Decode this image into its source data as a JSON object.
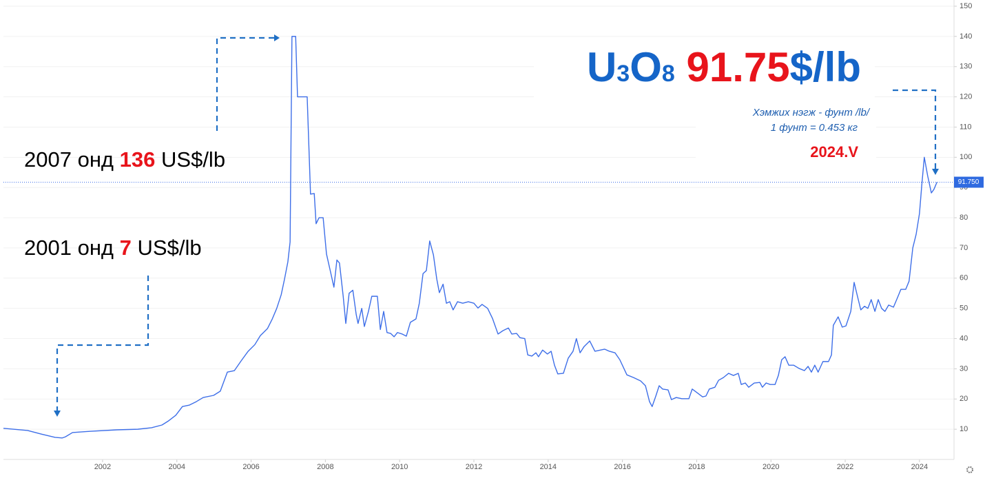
{
  "chart_data": {
    "type": "line",
    "color": "#3d6ee8",
    "xlim": [
      1999.33,
      2024.93
    ],
    "xticks": [
      2002,
      2004,
      2006,
      2008,
      2010,
      2012,
      2014,
      2016,
      2018,
      2020,
      2022,
      2024
    ],
    "ylim": [
      0,
      150
    ],
    "yticks": [
      10,
      20,
      30,
      40,
      50,
      60,
      70,
      80,
      90,
      100,
      110,
      120,
      130,
      140,
      150
    ],
    "grid": true,
    "price_line": {
      "value": 91.75,
      "label": "91.750"
    },
    "x": [
      1999.33,
      1999.98,
      2000.35,
      2000.72,
      2000.91,
      2001.0,
      2001.19,
      2001.65,
      2002.39,
      2002.95,
      2003.32,
      2003.6,
      2003.78,
      2003.97,
      2004.15,
      2004.34,
      2004.52,
      2004.71,
      2004.99,
      2005.17,
      2005.36,
      2005.55,
      2005.73,
      2005.92,
      2006.1,
      2006.25,
      2006.44,
      2006.57,
      2006.69,
      2006.81,
      2006.9,
      2006.99,
      2007.05,
      2007.1,
      2007.2,
      2007.25,
      2007.51,
      2007.6,
      2007.7,
      2007.75,
      2007.83,
      2007.94,
      2008.03,
      2008.14,
      2008.23,
      2008.31,
      2008.38,
      2008.48,
      2008.55,
      2008.64,
      2008.74,
      2008.83,
      2008.88,
      2008.98,
      2009.05,
      2009.16,
      2009.25,
      2009.4,
      2009.48,
      2009.57,
      2009.66,
      2009.76,
      2009.85,
      2009.94,
      2010.07,
      2010.18,
      2010.29,
      2010.44,
      2010.53,
      2010.63,
      2010.72,
      2010.81,
      2010.91,
      2011.0,
      2011.07,
      2011.17,
      2011.26,
      2011.35,
      2011.44,
      2011.56,
      2011.7,
      2011.85,
      2012.0,
      2012.11,
      2012.22,
      2012.37,
      2012.5,
      2012.65,
      2012.78,
      2012.93,
      2013.02,
      2013.15,
      2013.24,
      2013.37,
      2013.45,
      2013.56,
      2013.67,
      2013.74,
      2013.85,
      2013.98,
      2014.08,
      2014.17,
      2014.26,
      2014.41,
      2014.54,
      2014.67,
      2014.76,
      2014.86,
      2014.97,
      2015.12,
      2015.26,
      2015.41,
      2015.52,
      2015.65,
      2015.8,
      2015.93,
      2016.12,
      2016.3,
      2016.49,
      2016.62,
      2016.73,
      2016.8,
      2016.9,
      2016.99,
      2017.08,
      2017.23,
      2017.32,
      2017.45,
      2017.6,
      2017.79,
      2017.88,
      2018.01,
      2018.16,
      2018.25,
      2018.34,
      2018.49,
      2018.59,
      2018.72,
      2018.86,
      2018.99,
      2019.12,
      2019.2,
      2019.31,
      2019.4,
      2019.55,
      2019.7,
      2019.77,
      2019.87,
      2019.98,
      2020.11,
      2020.2,
      2020.29,
      2020.38,
      2020.48,
      2020.61,
      2020.76,
      2020.9,
      2021.0,
      2021.09,
      2021.18,
      2021.27,
      2021.4,
      2021.55,
      2021.63,
      2021.68,
      2021.81,
      2021.92,
      2022.02,
      2022.15,
      2022.24,
      2022.33,
      2022.42,
      2022.52,
      2022.61,
      2022.7,
      2022.8,
      2022.89,
      2022.98,
      2023.07,
      2023.17,
      2023.3,
      2023.41,
      2023.5,
      2023.63,
      2023.72,
      2023.82,
      2023.91,
      2024.0,
      2024.06,
      2024.13,
      2024.22,
      2024.32,
      2024.39,
      2024.47
    ],
    "values": [
      10.3,
      9.6,
      8.4,
      7.3,
      7.1,
      7.5,
      8.9,
      9.3,
      9.8,
      10,
      10.5,
      11.4,
      12.8,
      14.6,
      17.5,
      18,
      19.1,
      20.5,
      21.2,
      22.6,
      28.9,
      29.4,
      32.6,
      35.8,
      38,
      41,
      43.3,
      46.5,
      50,
      54.5,
      59.7,
      65.4,
      72,
      140,
      140,
      120,
      120,
      87.8,
      88,
      78,
      80,
      80,
      68,
      62,
      57,
      66,
      65,
      54,
      45,
      55,
      56,
      48,
      45,
      50,
      44,
      49,
      54,
      54,
      43,
      49,
      42,
      41.7,
      40.6,
      42,
      41.5,
      40.8,
      45.4,
      46.5,
      51.7,
      61.5,
      62.5,
      72.3,
      67.7,
      59.7,
      55.2,
      58,
      51.7,
      52.2,
      49.5,
      52.2,
      51.7,
      52.2,
      51.7,
      50.1,
      51.3,
      50,
      46.7,
      41.5,
      42.6,
      43.5,
      41.5,
      41.7,
      40.3,
      40,
      34.6,
      34.2,
      35.3,
      34,
      36.2,
      34.9,
      35.8,
      31.2,
      28.3,
      28.5,
      33.5,
      35.8,
      40,
      35.3,
      37.4,
      39.2,
      35.8,
      36.2,
      36.5,
      35.8,
      35.3,
      33,
      28,
      27.1,
      26,
      24.4,
      19.1,
      17.5,
      21,
      24.4,
      23.3,
      23,
      19.8,
      20.5,
      20.1,
      20.1,
      23.3,
      22.1,
      20.7,
      21,
      23.3,
      23.9,
      26.2,
      27.1,
      28.5,
      27.8,
      28.5,
      24.8,
      25.3,
      23.9,
      25.3,
      25.5,
      23.9,
      25.3,
      24.8,
      24.8,
      27.8,
      33,
      34,
      31.2,
      31.2,
      30.1,
      29.4,
      30.8,
      28.9,
      31.2,
      28.9,
      32.4,
      32.4,
      34.6,
      44.4,
      47.2,
      43.8,
      44.2,
      49,
      58.6,
      54,
      49.5,
      50.7,
      50,
      52.9,
      49,
      52.9,
      50,
      49,
      51.1,
      50.4,
      53.6,
      56.3,
      56.3,
      59,
      70,
      74.5,
      81.4,
      90.5,
      100,
      93.9,
      88.2,
      89.4,
      91.75
    ],
    "annotations": [
      {
        "parts": [
          "2007 онд",
          "136",
          "US$/lb"
        ]
      },
      {
        "parts": [
          "2001 онд",
          "7",
          "US$/lb"
        ]
      }
    ],
    "headline": {
      "parts": [
        "U",
        "3",
        "O",
        "8",
        "91.75",
        "$/lb"
      ]
    },
    "units_note": [
      "Хэмжих нэгж - фунт /lb/",
      "1 фунт = 0.453 кг"
    ],
    "period": "2024.V"
  }
}
